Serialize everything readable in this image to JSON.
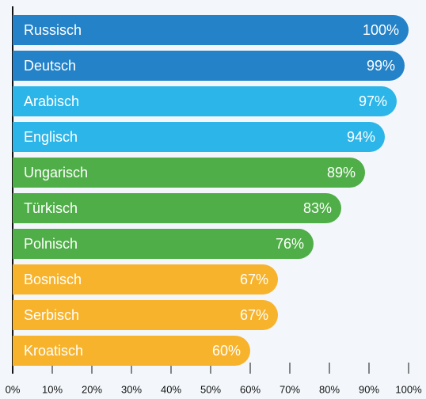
{
  "chart_data": {
    "type": "hbar",
    "categories": [
      "Russisch",
      "Deutsch",
      "Arabisch",
      "Englisch",
      "Ungarisch",
      "Türkisch",
      "Polnisch",
      "Bosnisch",
      "Serbisch",
      "Kroatisch"
    ],
    "values": [
      100,
      99,
      97,
      94,
      89,
      83,
      76,
      67,
      67,
      60
    ],
    "value_labels": [
      "100%",
      "99%",
      "97%",
      "94%",
      "89%",
      "83%",
      "76%",
      "67%",
      "67%",
      "60%"
    ],
    "colors": [
      "#2382c8",
      "#2382c8",
      "#2cb5e8",
      "#2cb5e8",
      "#4fae47",
      "#4fae47",
      "#4fae47",
      "#f7b32b",
      "#f7b32b",
      "#f7b32b"
    ],
    "xlim": [
      0,
      100
    ],
    "xticks": [
      {
        "value": 0,
        "label": "0%"
      },
      {
        "value": 10,
        "label": "10%"
      },
      {
        "value": 20,
        "label": "20%"
      },
      {
        "value": 30,
        "label": "30%"
      },
      {
        "value": 40,
        "label": "40%"
      },
      {
        "value": 50,
        "label": "50%"
      },
      {
        "value": 60,
        "label": "60%"
      },
      {
        "value": 70,
        "label": "70%"
      },
      {
        "value": 80,
        "label": "80%"
      },
      {
        "value": 90,
        "label": "90%"
      },
      {
        "value": 100,
        "label": "100%"
      }
    ]
  }
}
